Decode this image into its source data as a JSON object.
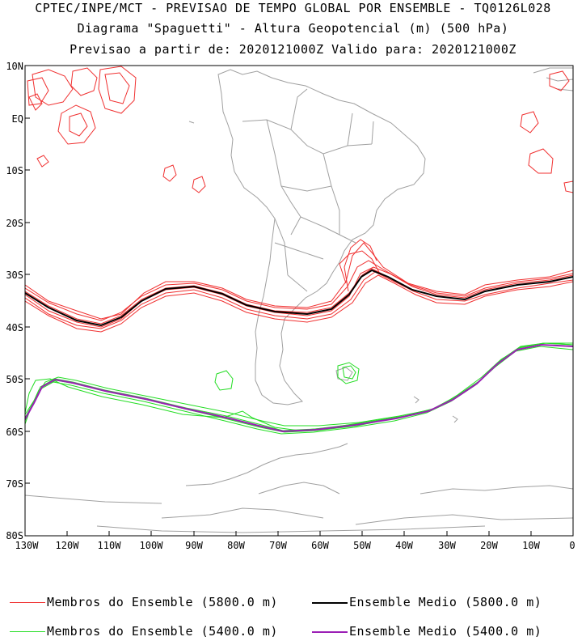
{
  "titles": {
    "line1": "CPTEC/INPE/MCT - PREVISAO DE TEMPO GLOBAL POR ENSEMBLE - TQ0126L028",
    "line2": "Diagrama \"Spaguetti\" - Altura Geopotencial (m) (500 hPa)",
    "line3": "Previsao a partir de: 2020121000Z  Valido para: 2020121000Z"
  },
  "map": {
    "lon_range": [
      -130,
      0
    ],
    "lat_range": [
      -80,
      10
    ],
    "lat_labels": [
      "10N",
      "EQ",
      "10S",
      "20S",
      "30S",
      "40S",
      "50S",
      "60S",
      "70S",
      "80S"
    ],
    "lon_labels": [
      "130W",
      "120W",
      "110W",
      "100W",
      "90W",
      "80W",
      "70W",
      "60W",
      "50W",
      "40W",
      "30W",
      "20W",
      "10W",
      "0"
    ]
  },
  "colors": {
    "member_5800": "#f03030",
    "member_5400": "#00cc00",
    "mean_5800": "#000000",
    "mean_5400": "#9b1fb5",
    "coast": "#a0a0a0"
  },
  "legend": {
    "member_5800": "Membros do Ensemble (5800.0 m)",
    "mean_5800": "Ensemble Medio (5800.0 m)",
    "member_5400": "Membros do Ensemble (5400.0 m)",
    "mean_5400": "Ensemble Medio (5400.0 m)"
  }
}
